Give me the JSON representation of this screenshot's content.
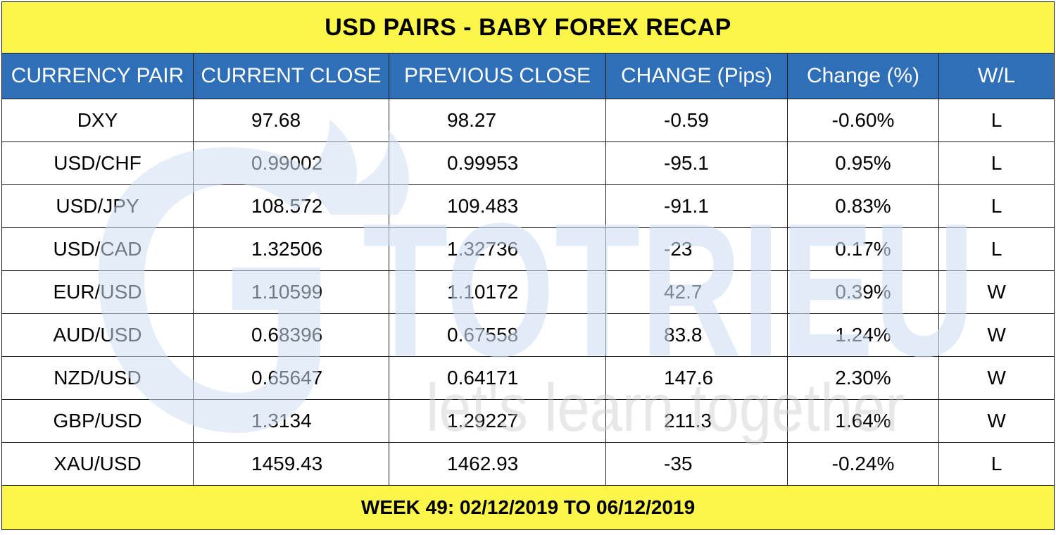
{
  "title": "USD PAIRS - BABY FOREX RECAP",
  "columns": [
    "CURRENCY PAIR",
    "CURRENT CLOSE",
    "PREVIOUS CLOSE",
    "CHANGE (Pips)",
    "Change (%)",
    "W/L"
  ],
  "rows": [
    {
      "pair": "DXY",
      "current": "97.68",
      "previous": "98.27",
      "pips": "-0.59",
      "pct": "-0.60%",
      "wl": "L"
    },
    {
      "pair": "USD/CHF",
      "current": "0.99002",
      "previous": "0.99953",
      "pips": "-95.1",
      "pct": "0.95%",
      "wl": "L"
    },
    {
      "pair": "USD/JPY",
      "current": "108.572",
      "previous": "109.483",
      "pips": "-91.1",
      "pct": "0.83%",
      "wl": "L"
    },
    {
      "pair": "USD/CAD",
      "current": "1.32506",
      "previous": "1.32736",
      "pips": "-23",
      "pct": "0.17%",
      "wl": "L"
    },
    {
      "pair": "EUR/USD",
      "current": "1.10599",
      "previous": "1.10172",
      "pips": "42.7",
      "pct": "0.39%",
      "wl": "W"
    },
    {
      "pair": "AUD/USD",
      "current": "0.68396",
      "previous": "0.67558",
      "pips": "83.8",
      "pct": "1.24%",
      "wl": "W"
    },
    {
      "pair": "NZD/USD",
      "current": "0.65647",
      "previous": "0.64171",
      "pips": "147.6",
      "pct": "2.30%",
      "wl": "W"
    },
    {
      "pair": "GBP/USD",
      "current": "1.3134",
      "previous": "1.29227",
      "pips": "211.3",
      "pct": "1.64%",
      "wl": "W"
    },
    {
      "pair": "XAU/USD",
      "current": "1459.43",
      "previous": "1462.93",
      "pips": "-35",
      "pct": "-0.24%",
      "wl": "L"
    }
  ],
  "footer": "WEEK 49: 02/12/2019 TO 06/12/2019",
  "watermark": {
    "brand": "TOTRIEU",
    "tagline": "let's learn together",
    "logo_icon": "flame-logo-icon"
  },
  "colors": {
    "title_bg": "#fdf64a",
    "header_bg": "#2f6fb8",
    "header_text": "#ffffff",
    "watermark_blue": "#cfe0f3",
    "watermark_gray": "#ececec"
  }
}
